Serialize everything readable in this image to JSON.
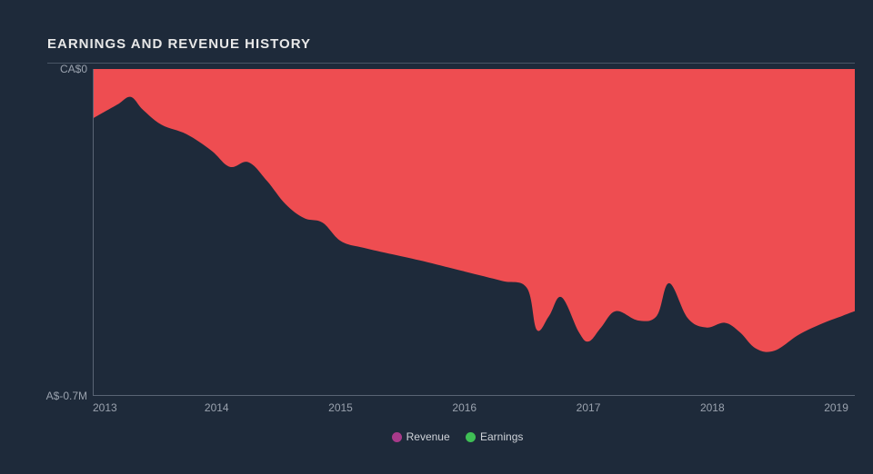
{
  "chart": {
    "type": "area",
    "title": "EARNINGS AND REVENUE HISTORY",
    "background_color": "#1e2a3a",
    "title_color": "#e8e8e8",
    "title_fontsize": 15,
    "axis_color": "#5a6474",
    "tick_color": "#9aa2ae",
    "tick_fontsize": 12,
    "underline_color": "#4a5666",
    "ylim_top_label": "CA$0",
    "ylim_bottom_label": "A$-0.7M",
    "ylim": [
      -0.7,
      0
    ],
    "x_years": [
      2013,
      2014,
      2015,
      2016,
      2017,
      2018,
      2019
    ],
    "xlim": [
      2013,
      2019.15
    ],
    "series": [
      {
        "name": "Revenue",
        "legend_color": "#a83a8a",
        "fill_color": "#ee4d51",
        "points_x": [
          2013.0,
          2013.1,
          2013.2,
          2013.3,
          2013.4,
          2013.55,
          2013.75,
          2013.95,
          2014.1,
          2014.25,
          2014.4,
          2014.55,
          2014.7,
          2014.85,
          2015.0,
          2015.2,
          2015.45,
          2015.7,
          2016.0,
          2016.3,
          2016.5,
          2016.58,
          2016.68,
          2016.78,
          2016.92,
          2017.0,
          2017.1,
          2017.22,
          2017.4,
          2017.55,
          2017.65,
          2017.8,
          2017.95,
          2018.1,
          2018.22,
          2018.35,
          2018.5,
          2018.7,
          2018.9,
          2019.05,
          2019.15
        ],
        "points_y": [
          -0.105,
          -0.09,
          -0.075,
          -0.06,
          -0.088,
          -0.12,
          -0.14,
          -0.175,
          -0.21,
          -0.2,
          -0.24,
          -0.29,
          -0.32,
          -0.33,
          -0.37,
          -0.385,
          -0.4,
          -0.415,
          -0.435,
          -0.455,
          -0.47,
          -0.56,
          -0.53,
          -0.49,
          -0.565,
          -0.585,
          -0.555,
          -0.52,
          -0.54,
          -0.53,
          -0.46,
          -0.535,
          -0.555,
          -0.545,
          -0.565,
          -0.6,
          -0.605,
          -0.57,
          -0.545,
          -0.53,
          -0.52
        ]
      },
      {
        "name": "Earnings",
        "legend_color": "#3fbf55",
        "fill_color": "#3fbf55"
      }
    ],
    "legend_text_color": "#cfd3d9",
    "legend_fontsize": 12
  }
}
